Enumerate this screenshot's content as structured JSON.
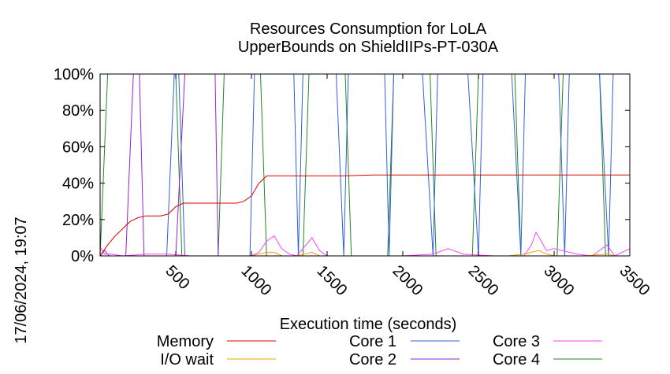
{
  "chart_data": {
    "type": "line",
    "title_line1": "Resources Consumption for LoLA",
    "title_line2": "UpperBounds on ShieldIIPs-PT-030A",
    "xlabel": "Execution time (seconds)",
    "ylabel": "",
    "side_label": "17/06/2024, 19:07",
    "xlim": [
      0,
      3500
    ],
    "ylim": [
      0,
      100
    ],
    "x_ticks": [
      500,
      1000,
      1500,
      2000,
      2500,
      3000,
      3500
    ],
    "x_tick_labels": [
      "500",
      "1000",
      "1500",
      "2000",
      "2500",
      "3000",
      "3500"
    ],
    "y_ticks": [
      0,
      20,
      40,
      60,
      80,
      100
    ],
    "y_tick_labels": [
      "0%",
      "20%",
      "40%",
      "60%",
      "80%",
      "100%"
    ],
    "grid": false,
    "legend_placement": "bottom",
    "series": [
      {
        "name": "Memory",
        "color": "#e00000",
        "x": [
          0,
          50,
          100,
          150,
          200,
          250,
          300,
          350,
          400,
          450,
          500,
          550,
          600,
          700,
          800,
          900,
          950,
          1000,
          1050,
          1100,
          1200,
          1400,
          1600,
          1800,
          2000,
          2200,
          2400,
          2600,
          2800,
          3000,
          3200,
          3400,
          3500
        ],
        "values": [
          0,
          6,
          11,
          15,
          19,
          21,
          22,
          22,
          22,
          23,
          27,
          29,
          29,
          29,
          29,
          29,
          30,
          33,
          40,
          44,
          44,
          44,
          44,
          44.5,
          44.5,
          44.5,
          44.5,
          44.5,
          44.5,
          44.5,
          44.5,
          44.5,
          44.5
        ]
      },
      {
        "name": "I/O wait",
        "color": "#f0a000",
        "x": [
          0,
          100,
          200,
          400,
          600,
          800,
          1000,
          1050,
          1100,
          1150,
          1200,
          1300,
          1350,
          1400,
          1450,
          1500,
          1800,
          2100,
          2400,
          2700,
          2800,
          2850,
          2900,
          2950,
          3000,
          3200,
          3350,
          3400,
          3500
        ],
        "values": [
          0,
          0,
          0,
          0,
          0,
          0,
          0,
          1,
          2,
          2,
          0,
          0,
          1,
          2,
          0,
          0,
          0,
          0,
          0,
          0,
          1,
          2,
          3,
          1,
          0,
          0,
          1,
          0,
          0
        ]
      },
      {
        "name": "Core 1",
        "color": "#3060e0",
        "x": [
          0,
          440,
          490,
          520,
          560,
          800,
          990,
          1020,
          1060,
          1280,
          1310,
          1340,
          1560,
          1610,
          1640,
          1880,
          1910,
          1940,
          2130,
          2200,
          2230,
          2430,
          2500,
          2530,
          2720,
          2780,
          2810,
          3030,
          3070,
          3100,
          3300,
          3360,
          3390,
          3500
        ],
        "values": [
          0,
          0,
          100,
          100,
          0,
          0,
          0,
          100,
          100,
          100,
          0,
          100,
          100,
          0,
          100,
          100,
          0,
          100,
          100,
          0,
          100,
          100,
          0,
          100,
          100,
          0,
          100,
          100,
          0,
          100,
          100,
          0,
          100,
          100
        ]
      },
      {
        "name": "Core 2",
        "color": "#9a22d0",
        "x": [
          0,
          30,
          60,
          170,
          220,
          260,
          290,
          320,
          500,
          560,
          640,
          760,
          780,
          820,
          1000,
          1200,
          1500,
          1800,
          2100,
          2400,
          2700,
          3000,
          3300,
          3500
        ],
        "values": [
          0,
          3,
          0,
          0,
          100,
          100,
          0,
          0,
          0,
          100,
          100,
          100,
          0,
          0,
          0,
          0,
          0,
          0,
          0,
          0,
          0,
          0,
          0,
          0
        ]
      },
      {
        "name": "Core 3",
        "color": "#ff44ff",
        "x": [
          0,
          30,
          70,
          150,
          300,
          450,
          600,
          800,
          1000,
          1050,
          1100,
          1150,
          1200,
          1250,
          1300,
          1350,
          1400,
          1450,
          1500,
          1700,
          2000,
          2200,
          2300,
          2400,
          2600,
          2800,
          2850,
          2880,
          2950,
          3000,
          3050,
          3100,
          3150,
          3250,
          3350,
          3400,
          3500
        ],
        "values": [
          5,
          1,
          1,
          0,
          1,
          1,
          0,
          0,
          0,
          2,
          8,
          11,
          4,
          1,
          0,
          5,
          10,
          3,
          0,
          0,
          0,
          1,
          4,
          1,
          0,
          0,
          6,
          13,
          3,
          4,
          3,
          2,
          1,
          0,
          6,
          0,
          4
        ]
      },
      {
        "name": "Core 4",
        "color": "#228822",
        "x": [
          0,
          50,
          500,
          540,
          780,
          820,
          1060,
          1100,
          1340,
          1380,
          1620,
          1660,
          1900,
          1940,
          2180,
          2220,
          2460,
          2500,
          2740,
          2780,
          3020,
          3060,
          3300,
          3340,
          3500
        ],
        "values": [
          0,
          100,
          100,
          0,
          0,
          100,
          100,
          0,
          0,
          100,
          100,
          0,
          0,
          100,
          100,
          0,
          0,
          100,
          100,
          0,
          0,
          100,
          100,
          0,
          0
        ]
      }
    ]
  }
}
